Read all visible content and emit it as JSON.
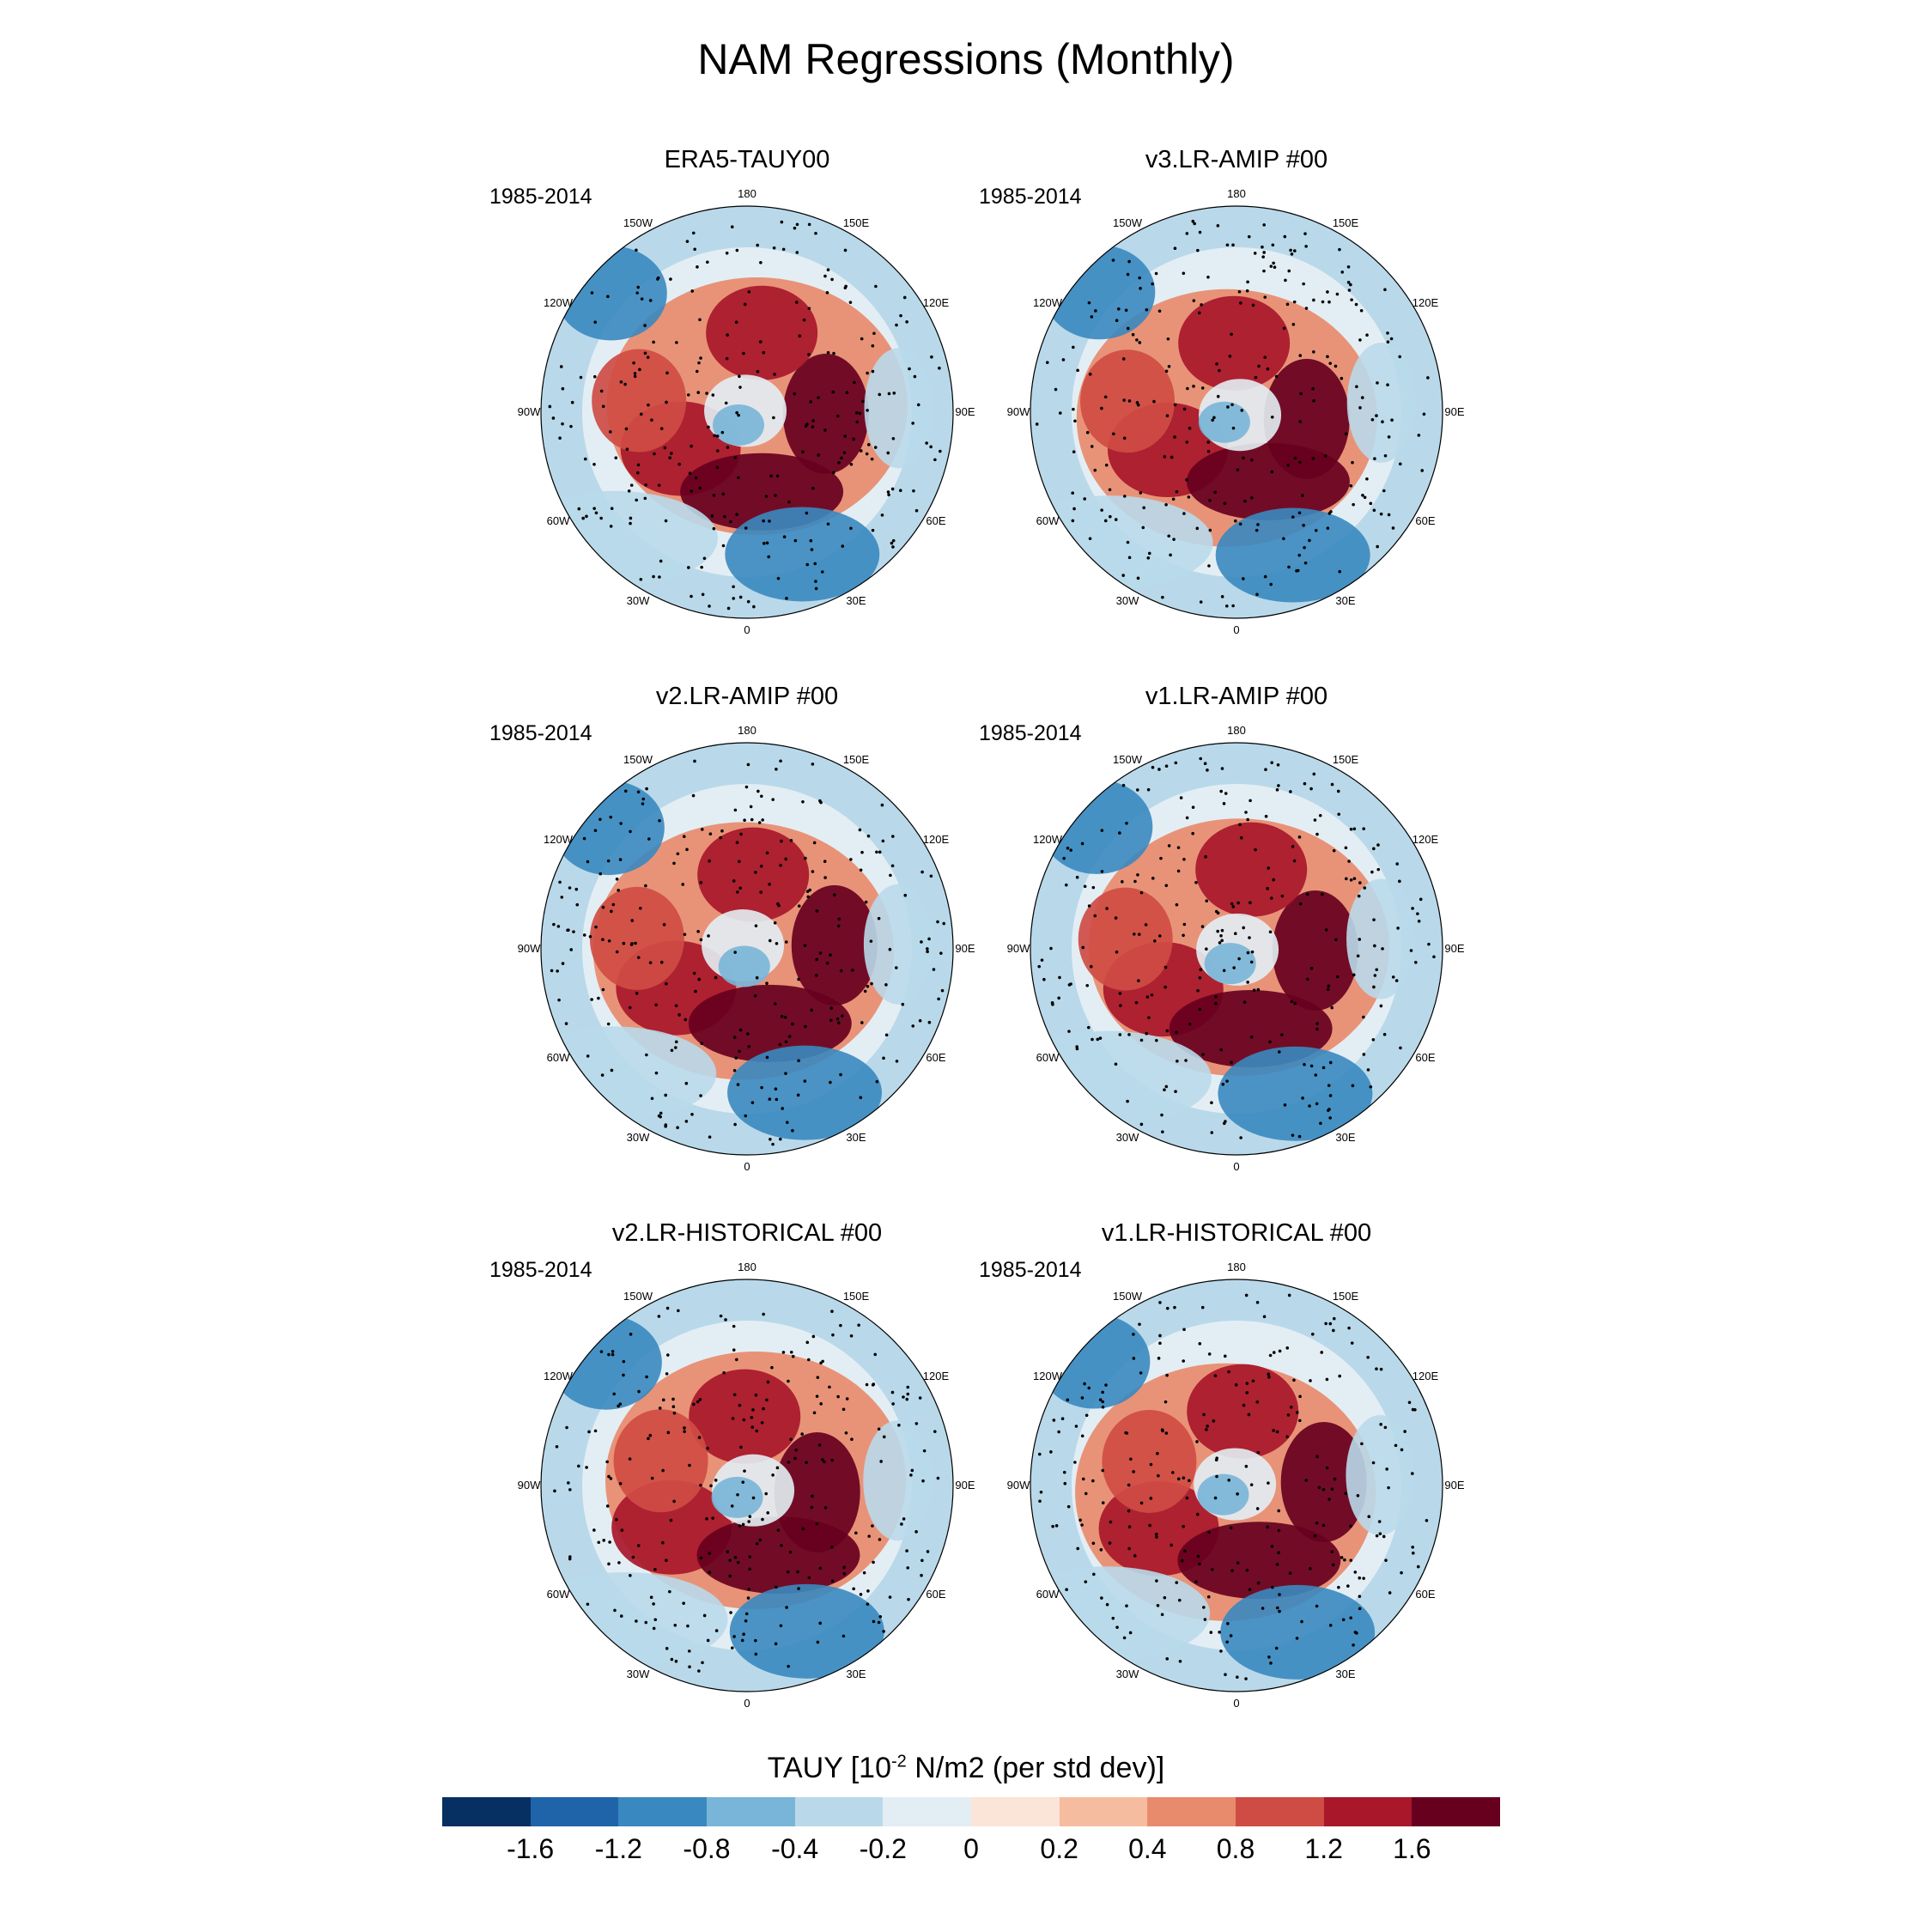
{
  "title": "NAM Regressions (Monthly)",
  "longitude_labels": [
    "180",
    "150E",
    "120E",
    "90E",
    "60E",
    "30E",
    "0",
    "30W",
    "60W",
    "90W",
    "120W",
    "150W"
  ],
  "panels": [
    {
      "title": "ERA5-TAUY00",
      "period": "1985-2014"
    },
    {
      "title": "v3.LR-AMIP  #00",
      "period": "1985-2014"
    },
    {
      "title": "v2.LR-AMIP  #00",
      "period": "1985-2014"
    },
    {
      "title": "v1.LR-AMIP  #00",
      "period": "1985-2014"
    },
    {
      "title": "v2.LR-HISTORICAL  #00",
      "period": "1985-2014"
    },
    {
      "title": "v1.LR-HISTORICAL  #00",
      "period": "1985-2014"
    }
  ],
  "colorbar": {
    "title_main": "TAUY [10",
    "title_sup": "-2",
    "title_rest": " N/m2 (per std dev)]",
    "colors": [
      "#053061",
      "#1f63a8",
      "#3a88c0",
      "#78b5d8",
      "#b9d9ea",
      "#e3eef4",
      "#fbe4d8",
      "#f6bca0",
      "#e88b6d",
      "#cf4c44",
      "#a8172a",
      "#67001f"
    ],
    "tick_labels": [
      "-1.6",
      "-1.2",
      "-0.8",
      "-0.4",
      "-0.2",
      "0",
      "0.2",
      "0.4",
      "0.8",
      "1.2",
      "1.6"
    ]
  }
}
